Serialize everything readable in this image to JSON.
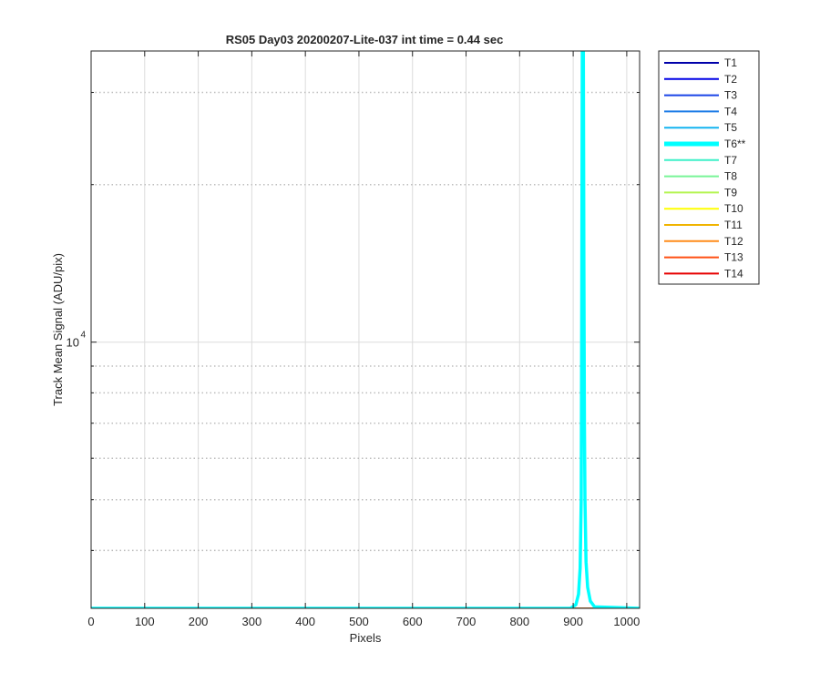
{
  "chart_data": {
    "type": "line",
    "title": "RS05 Day03 20200207-Lite-037 int time = 0.44 sec",
    "xlabel": "Pixels",
    "ylabel": "Track Mean Signal (ADU/pix)",
    "y_scale": "log",
    "xlim": [
      0,
      1024
    ],
    "ylim": [
      3100,
      36000
    ],
    "grid": true,
    "legend_position": "outside-right",
    "xticks": [
      0,
      100,
      200,
      300,
      400,
      500,
      600,
      700,
      800,
      900,
      1000
    ],
    "xtick_labels": [
      "0",
      "100",
      "200",
      "300",
      "400",
      "500",
      "600",
      "700",
      "800",
      "900",
      "1000"
    ],
    "yticks_major": [
      10000
    ],
    "ytick_labels": [
      "10",
      "4"
    ],
    "yticks_minor": [
      4000,
      5000,
      6000,
      7000,
      8000,
      9000,
      20000,
      30000
    ],
    "series": [
      {
        "name": "T1",
        "color": "#0000aa",
        "bold": false,
        "values": [
          3100
        ]
      },
      {
        "name": "T2",
        "color": "#0000e6",
        "bold": false,
        "values": [
          3100
        ]
      },
      {
        "name": "T3",
        "color": "#1a44e6",
        "bold": false,
        "values": [
          3100
        ]
      },
      {
        "name": "T4",
        "color": "#1a7ae6",
        "bold": false,
        "values": [
          3100
        ]
      },
      {
        "name": "T5",
        "color": "#14b4f0",
        "bold": false,
        "values": [
          3100
        ]
      },
      {
        "name": "T6**",
        "color": "#00ffff",
        "bold": true,
        "x": [
          0,
          895,
          905,
          910,
          913,
          915,
          916,
          917,
          918,
          919,
          920,
          921,
          922,
          924,
          927,
          932,
          940,
          1024
        ],
        "values": [
          3100,
          3100,
          3150,
          3300,
          3700,
          5000,
          12000,
          36000,
          36000,
          36000,
          14000,
          7000,
          5000,
          3800,
          3400,
          3200,
          3120,
          3100
        ]
      },
      {
        "name": "T7",
        "color": "#3cf0c8",
        "bold": false,
        "values": [
          3100
        ]
      },
      {
        "name": "T8",
        "color": "#78f596",
        "bold": false,
        "values": [
          3100
        ]
      },
      {
        "name": "T9",
        "color": "#b4f550",
        "bold": false,
        "values": [
          3100
        ]
      },
      {
        "name": "T10",
        "color": "#ffff00",
        "bold": false,
        "values": [
          3100
        ]
      },
      {
        "name": "T11",
        "color": "#f0b400",
        "bold": false,
        "values": [
          3100
        ]
      },
      {
        "name": "T12",
        "color": "#ff8c1a",
        "bold": false,
        "values": [
          3100
        ]
      },
      {
        "name": "T13",
        "color": "#ff5014",
        "bold": false,
        "values": [
          3100
        ]
      },
      {
        "name": "T14",
        "color": "#e60000",
        "bold": false,
        "values": [
          3100
        ]
      }
    ]
  }
}
